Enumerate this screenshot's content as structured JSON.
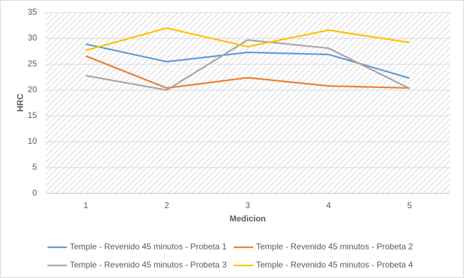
{
  "chart_data": {
    "type": "line",
    "x_label": "Medicion",
    "y_label": "HRC",
    "categories": [
      "1",
      "2",
      "3",
      "4",
      "5"
    ],
    "series": [
      {
        "name": "Temple - Revenido 45 minutos - Probeta 1",
        "color": "#5b9bd5",
        "values": [
          28.9,
          25.5,
          27.3,
          26.9,
          22.3
        ]
      },
      {
        "name": "Temple - Revenido 45 minutos - Probeta 2",
        "color": "#ed7d31",
        "values": [
          26.6,
          20.4,
          22.4,
          20.8,
          20.4
        ]
      },
      {
        "name": "Temple - Revenido 45 minutos - Probeta 3",
        "color": "#a5a5a5",
        "values": [
          22.8,
          20,
          29.7,
          28.1,
          20.3
        ]
      },
      {
        "name": "Temple - Revenido 45 minutos - Probeta 4",
        "color": "#ffc000",
        "values": [
          27.7,
          32,
          28.4,
          31.6,
          29.2
        ]
      }
    ],
    "ylim": [
      0,
      35
    ],
    "yticks": [
      0,
      5,
      10,
      15,
      20,
      25,
      30,
      35
    ],
    "grid": true,
    "legend": "bottom"
  }
}
